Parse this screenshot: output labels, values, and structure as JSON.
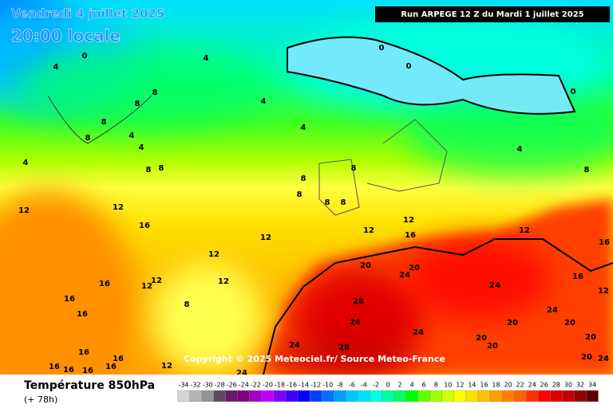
{
  "header": {
    "date": "Vendredi 4 juillet 2025",
    "time": "20:00 locale",
    "run": "Run ARPEGE 12 Z du Mardi 1 juillet 2025"
  },
  "copyright": "Copyright © 2025 Meteociel.fr/ Source Meteo-France",
  "footer": {
    "title": "Température 850hPa",
    "subtitle": "(+ 78h)"
  },
  "contour_labels": [
    0,
    4,
    4,
    0,
    0,
    8,
    8,
    4,
    8,
    4,
    4,
    8,
    4,
    4,
    8,
    8,
    4,
    8,
    0,
    8,
    8,
    8,
    8,
    8,
    12,
    12,
    12,
    16,
    12,
    16,
    12,
    12,
    12,
    16,
    20,
    20,
    24,
    16,
    16,
    12,
    12,
    12,
    24,
    12,
    16,
    28,
    8,
    16,
    24,
    24,
    20,
    20,
    24,
    20,
    20,
    24,
    28,
    20,
    16,
    16,
    20,
    24,
    16,
    16,
    16,
    16,
    12,
    24
  ],
  "legend": {
    "ticks": [
      -34,
      -32,
      -30,
      -28,
      -26,
      -24,
      -22,
      -20,
      -18,
      -16,
      -14,
      -12,
      -10,
      -8,
      -6,
      -4,
      -2,
      0,
      2,
      4,
      6,
      8,
      10,
      12,
      14,
      16,
      18,
      20,
      22,
      24,
      26,
      28,
      30,
      32,
      34
    ],
    "colors": [
      "#d4d4d4",
      "#b4b4b4",
      "#949494",
      "#5c4a5c",
      "#6a1a6a",
      "#800080",
      "#a000c0",
      "#c000ff",
      "#8000ff",
      "#4000ff",
      "#0000ff",
      "#0040ff",
      "#0070ff",
      "#00a0ff",
      "#00c8ff",
      "#00e0ff",
      "#00ffe0",
      "#00ffa0",
      "#00ff60",
      "#00ff00",
      "#60ff00",
      "#a0ff00",
      "#d0ff00",
      "#ffff00",
      "#ffe000",
      "#ffc000",
      "#ffa000",
      "#ff8000",
      "#ff6000",
      "#ff3000",
      "#ff0000",
      "#e00000",
      "#c00000",
      "#900000",
      "#600000"
    ]
  }
}
